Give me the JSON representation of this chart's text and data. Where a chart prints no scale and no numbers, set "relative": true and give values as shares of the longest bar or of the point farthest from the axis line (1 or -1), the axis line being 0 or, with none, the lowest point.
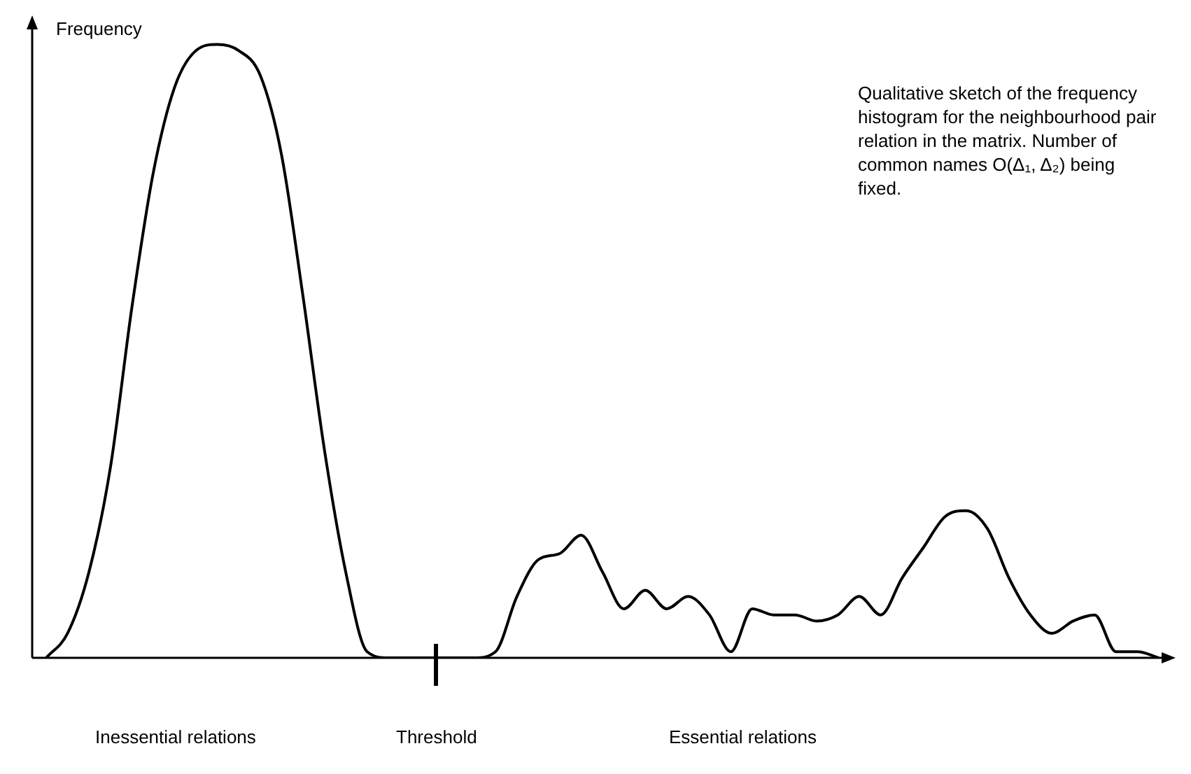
{
  "chart_data": {
    "type": "line",
    "relative": true,
    "ylabel": "Frequency",
    "color": "#000000",
    "marker": "none",
    "categories": [
      null,
      null,
      null,
      null,
      null,
      null,
      null,
      null,
      null,
      null,
      null,
      null,
      null,
      null,
      null,
      null,
      null,
      null,
      null,
      null,
      null,
      null,
      null,
      null,
      null,
      null,
      null,
      null,
      null,
      null,
      null,
      null,
      null,
      null,
      null,
      null,
      null,
      null,
      null,
      null,
      null,
      null,
      null,
      null,
      null,
      null,
      null,
      null,
      null,
      null,
      null,
      null,
      null
    ],
    "values": [
      0,
      0.04,
      0.14,
      0.31,
      0.57,
      0.79,
      0.93,
      0.99,
      1,
      0.99,
      0.95,
      0.82,
      0.59,
      0.34,
      0.14,
      0.01,
      0,
      0,
      0,
      0,
      0,
      0.01,
      0.1,
      0.16,
      0.17,
      0.2,
      0.14,
      0.08,
      0.11,
      0.08,
      0.1,
      0.07,
      0.01,
      0.08,
      0.07,
      0.07,
      0.06,
      0.07,
      0.1,
      0.07,
      0.13,
      0.18,
      0.23,
      0.24,
      0.21,
      0.13,
      0.07,
      0.04,
      0.06,
      0.07,
      0.01,
      0.01,
      0
    ],
    "annotations": [
      "Qualitative sketch of the frequency histogram for the neighbourhood pair relation in the matrix. Number of common names O(Δ₁, Δ₂) being fixed.",
      "Inessential relations",
      "Threshold",
      "Essential relations"
    ]
  }
}
